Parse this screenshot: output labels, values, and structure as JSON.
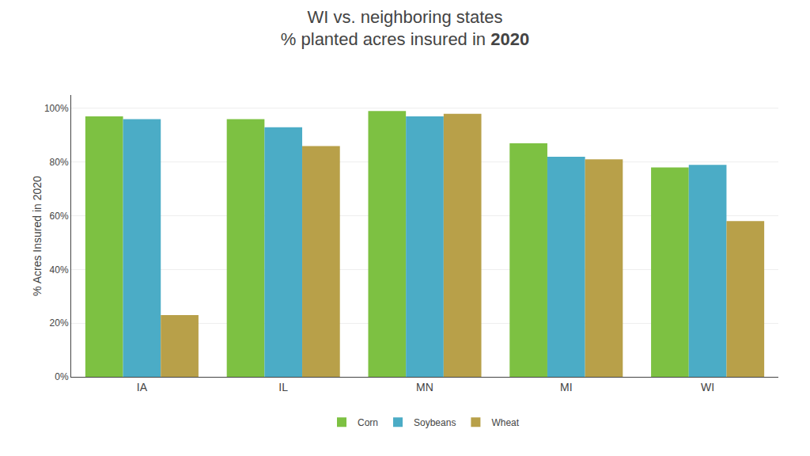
{
  "chart_data": {
    "type": "bar",
    "title": "WI vs. neighboring states",
    "subtitle": "% planted acres insured in 2020",
    "categories": [
      "IA",
      "IL",
      "MN",
      "MI",
      "WI"
    ],
    "series": [
      {
        "name": "Corn",
        "color": "#7DC142",
        "values": [
          97,
          96,
          99,
          87,
          78
        ]
      },
      {
        "name": "Soybeans",
        "color": "#4BACC6",
        "values": [
          96,
          93,
          97,
          82,
          79
        ]
      },
      {
        "name": "Wheat",
        "color": "#B8A049",
        "values": [
          23,
          86,
          98,
          81,
          58
        ]
      }
    ],
    "ylabel": "% Acres Insured in 2020",
    "ylim": [
      0,
      105
    ],
    "yticks": [
      {
        "value": 0,
        "label": "0%"
      },
      {
        "value": 20,
        "label": "20%"
      },
      {
        "value": 40,
        "label": "40%"
      },
      {
        "value": 60,
        "label": "60%"
      },
      {
        "value": 80,
        "label": "80%"
      },
      {
        "value": 100,
        "label": "100%"
      }
    ],
    "grid": true,
    "legend": "bottom"
  }
}
